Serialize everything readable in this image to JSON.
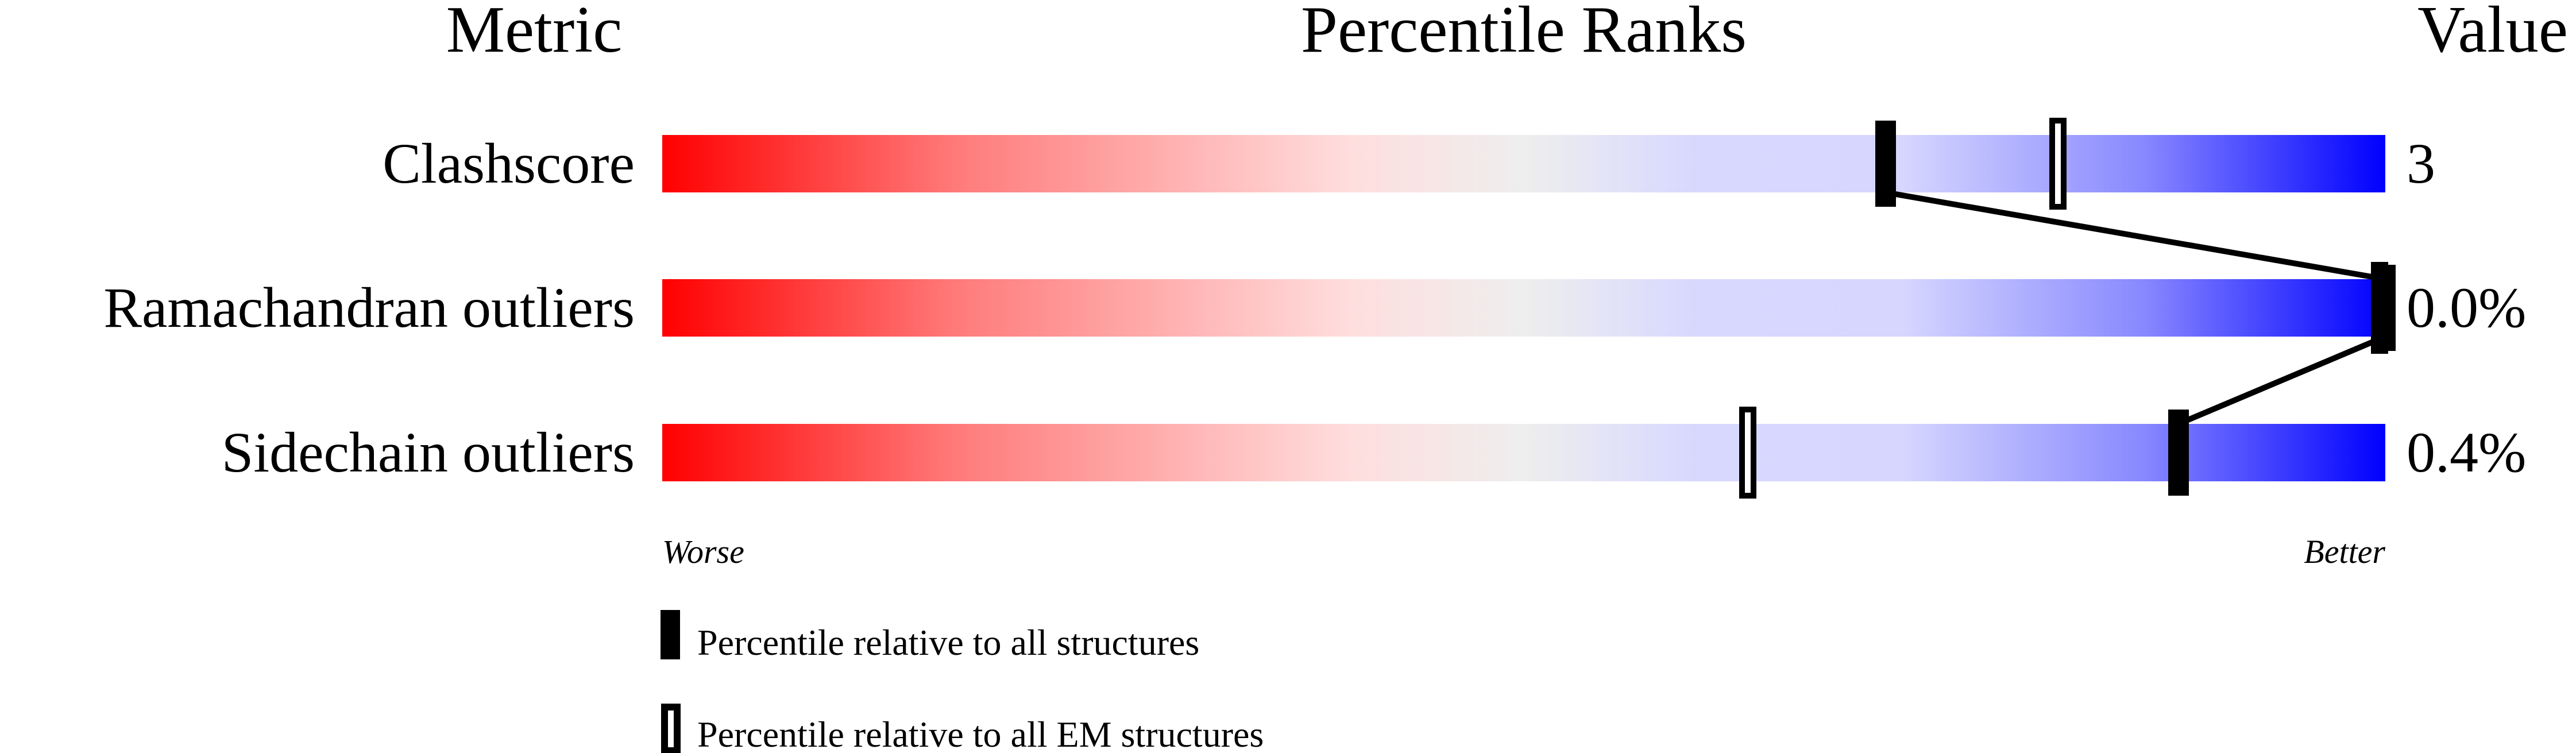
{
  "chart_data": {
    "type": "percentile-slider",
    "headers": {
      "metric": "Metric",
      "ranks": "Percentile Ranks",
      "value": "Value"
    },
    "xlim": [
      0,
      100
    ],
    "axis_labels": {
      "left": "Worse",
      "right": "Better"
    },
    "gradient_colors": [
      "#ff0000",
      "#ff7a7a",
      "#ffdede",
      "#eeeeee",
      "#d8d8ff",
      "#d6d6ff",
      "#8888ff",
      "#0000ff"
    ],
    "rows": [
      {
        "metric": "Clashscore",
        "value": "3",
        "percentile_all": 71,
        "percentile_em": 81
      },
      {
        "metric": "Ramachandran outliers",
        "value": "0.0%",
        "percentile_all": 100,
        "percentile_em": 100
      },
      {
        "metric": "Sidechain outliers",
        "value": "0.4%",
        "percentile_all": 88,
        "percentile_em": 63
      }
    ],
    "legend": {
      "all": "Percentile relative to all structures",
      "em": "Percentile relative to all EM structures"
    }
  }
}
